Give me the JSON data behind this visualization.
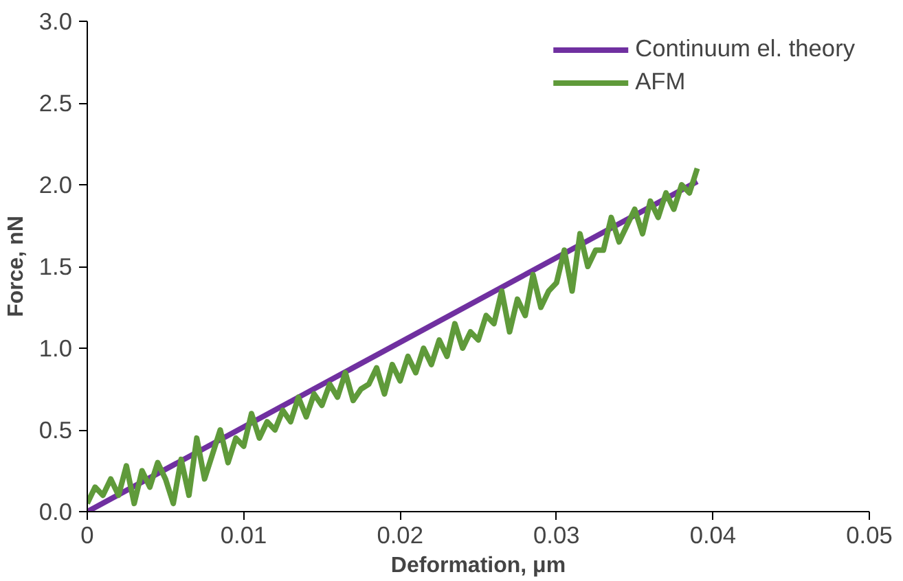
{
  "chart_data": {
    "type": "line",
    "xlabel": "Deformation, μm",
    "ylabel": "Force, nN",
    "xlim": [
      0,
      0.05
    ],
    "ylim": [
      0,
      3.0
    ],
    "xticks": [
      {
        "value": 0,
        "label": "0"
      },
      0.01,
      0.02,
      0.03,
      0.04,
      0.05
    ],
    "yticks": [
      {
        "value": 0,
        "label": "0.0"
      },
      0.5,
      {
        "value": 1,
        "label": "1.0"
      },
      1.5,
      {
        "value": 2,
        "label": "2.0"
      },
      2.5,
      {
        "value": 3,
        "label": "3.0"
      }
    ],
    "grid": false,
    "legend": "top right",
    "marker": "none",
    "line_style": "solid",
    "series": [
      {
        "name": "Continuum el. theory",
        "color": "#7030a0",
        "x": [
          0,
          0.039
        ],
        "values": [
          0,
          2.02
        ]
      },
      {
        "name": "AFM",
        "color": "#5f9a3a",
        "x": [
          0,
          0.0005,
          0.001,
          0.0015,
          0.002,
          0.0025,
          0.003,
          0.0035,
          0.004,
          0.0045,
          0.005,
          0.0055,
          0.006,
          0.0065,
          0.007,
          0.0075,
          0.008,
          0.0085,
          0.009,
          0.0095,
          0.01,
          0.0105,
          0.011,
          0.0115,
          0.012,
          0.0125,
          0.013,
          0.0135,
          0.014,
          0.0145,
          0.015,
          0.0155,
          0.016,
          0.0165,
          0.017,
          0.0175,
          0.018,
          0.0185,
          0.019,
          0.0195,
          0.02,
          0.0205,
          0.021,
          0.0215,
          0.022,
          0.0225,
          0.023,
          0.0235,
          0.024,
          0.0245,
          0.025,
          0.0255,
          0.026,
          0.0265,
          0.027,
          0.0275,
          0.028,
          0.0285,
          0.029,
          0.0295,
          0.03,
          0.0305,
          0.031,
          0.0315,
          0.032,
          0.0325,
          0.033,
          0.0335,
          0.034,
          0.0345,
          0.035,
          0.0355,
          0.036,
          0.0365,
          0.037,
          0.0375,
          0.038,
          0.0385,
          0.039
        ],
        "values": [
          0.05,
          0.15,
          0.1,
          0.2,
          0.1,
          0.28,
          0.05,
          0.25,
          0.15,
          0.3,
          0.2,
          0.05,
          0.32,
          0.1,
          0.45,
          0.2,
          0.35,
          0.5,
          0.3,
          0.45,
          0.4,
          0.6,
          0.45,
          0.55,
          0.5,
          0.62,
          0.55,
          0.7,
          0.58,
          0.72,
          0.65,
          0.78,
          0.7,
          0.85,
          0.68,
          0.75,
          0.78,
          0.88,
          0.72,
          0.9,
          0.8,
          0.95,
          0.85,
          1.0,
          0.9,
          1.05,
          0.95,
          1.15,
          1.0,
          1.1,
          1.05,
          1.2,
          1.15,
          1.35,
          1.1,
          1.3,
          1.2,
          1.45,
          1.25,
          1.35,
          1.4,
          1.6,
          1.35,
          1.7,
          1.5,
          1.6,
          1.6,
          1.8,
          1.65,
          1.75,
          1.85,
          1.7,
          1.9,
          1.8,
          1.95,
          1.85,
          2.0,
          1.95,
          2.1
        ]
      }
    ]
  }
}
